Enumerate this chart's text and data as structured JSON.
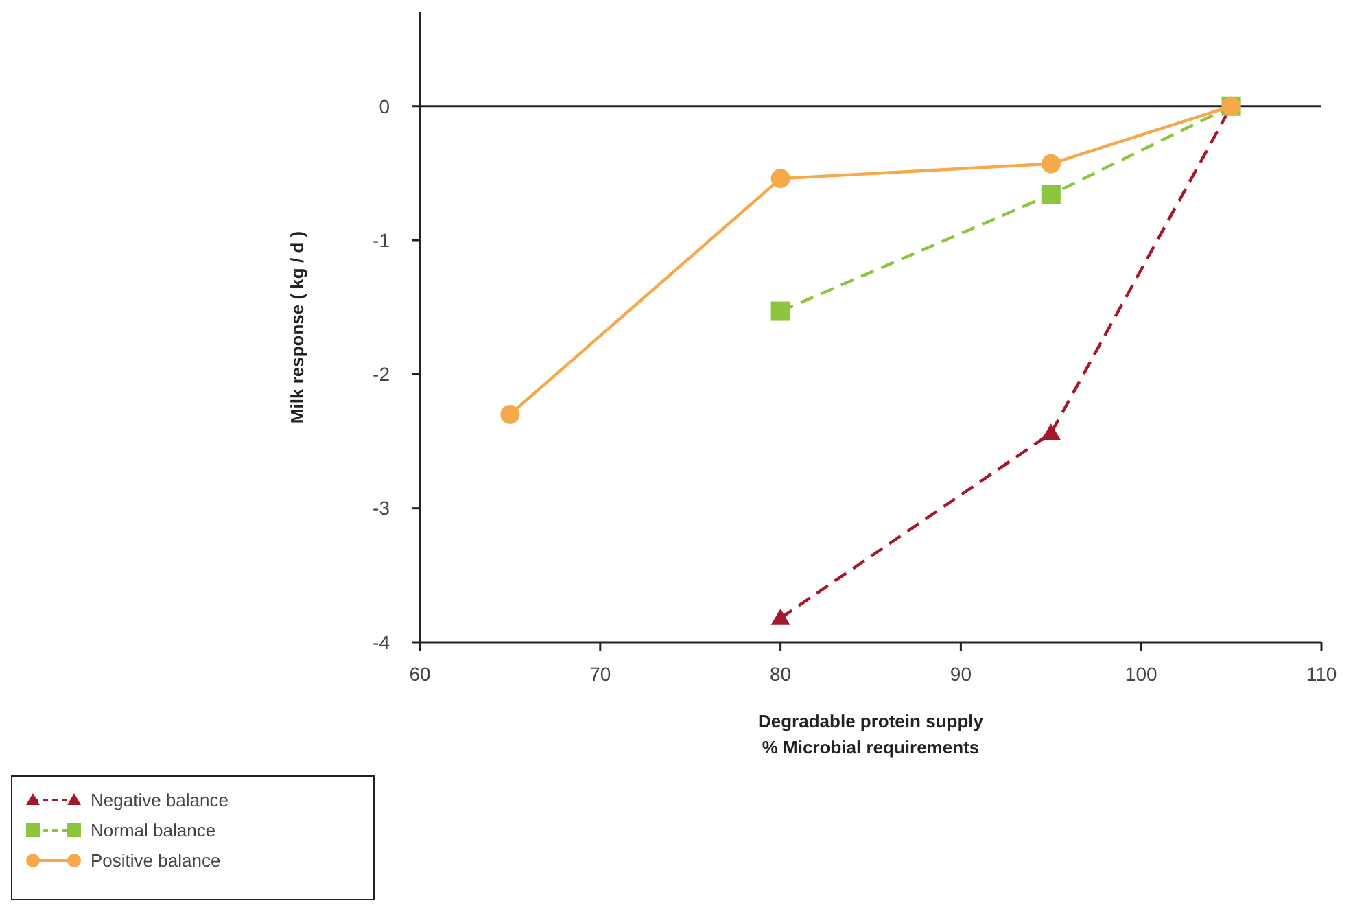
{
  "chart_data": {
    "type": "line",
    "xlabel": "Degradable protein supply\n% Microbial requirements",
    "ylabel": "Milk response ( kg / d )",
    "xlim": [
      60,
      110
    ],
    "xticks": [
      60,
      70,
      80,
      90,
      100,
      110
    ],
    "ylim": [
      -4,
      0.7
    ],
    "yticks": [
      -4,
      -3,
      -2,
      -1,
      0
    ],
    "grid": false,
    "legend": "bottom left",
    "ref_lines": [
      {
        "axis": "y",
        "value": 0,
        "color": "#222222"
      }
    ],
    "series": [
      {
        "name": "Negative balance",
        "color": "#a3182b",
        "x": [
          80,
          95,
          105
        ],
        "values": [
          -3.82,
          -2.44,
          0
        ],
        "marker": "triangle",
        "line_style": "dashed"
      },
      {
        "name": "Normal balance",
        "color": "#8cc63f",
        "x": [
          80,
          95,
          105
        ],
        "values": [
          -1.53,
          -0.66,
          0
        ],
        "marker": "square",
        "line_style": "dashed"
      },
      {
        "name": "Positive balance",
        "color": "#f5a94a",
        "x": [
          65,
          80,
          95,
          105
        ],
        "values": [
          -2.3,
          -0.54,
          -0.43,
          0
        ],
        "marker": "circle",
        "line_style": "solid"
      }
    ]
  }
}
